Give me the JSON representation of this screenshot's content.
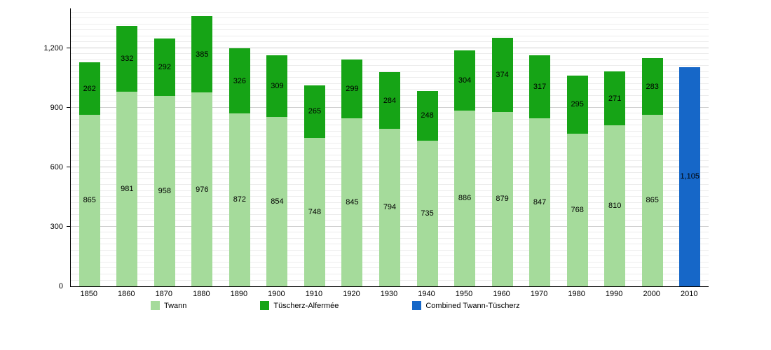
{
  "chart_data": {
    "type": "bar",
    "stacked": true,
    "title": "",
    "xlabel": "",
    "ylabel": "",
    "categories": [
      "1850",
      "1860",
      "1870",
      "1880",
      "1890",
      "1900",
      "1910",
      "1920",
      "1930",
      "1940",
      "1950",
      "1960",
      "1970",
      "1980",
      "1990",
      "2000",
      "2010"
    ],
    "series": [
      {
        "name": "Twann",
        "color": "#a5db9b",
        "values": [
          865,
          981,
          958,
          976,
          872,
          854,
          748,
          845,
          794,
          735,
          886,
          879,
          847,
          768,
          810,
          865,
          null
        ]
      },
      {
        "name": "Tüscherz-Alfermée",
        "color": "#16a416",
        "values": [
          262,
          332,
          292,
          385,
          326,
          309,
          265,
          299,
          284,
          248,
          304,
          374,
          317,
          295,
          271,
          283,
          null
        ]
      },
      {
        "name": "Combined Twann-Tüscherz",
        "color": "#1667c8",
        "values": [
          null,
          null,
          null,
          null,
          null,
          null,
          null,
          null,
          null,
          null,
          null,
          null,
          null,
          null,
          null,
          null,
          1105
        ]
      }
    ],
    "y_ticks": [
      0,
      300,
      600,
      900,
      1200
    ],
    "ylim": [
      0,
      1400
    ],
    "minor_grid_step": 30,
    "major_grid_step": 300,
    "grid": true,
    "legend_position": "bottom"
  }
}
